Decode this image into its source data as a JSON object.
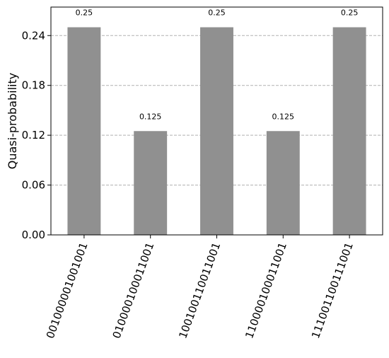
{
  "chart_data": {
    "type": "bar",
    "title": "",
    "xlabel": "",
    "ylabel": "Quasi-probability",
    "categories": [
      "001000001001001",
      "010000100011001",
      "100100110011001",
      "110000100011001",
      "111001100111001"
    ],
    "values": [
      0.25,
      0.125,
      0.25,
      0.125,
      0.25
    ],
    "value_labels": [
      "0.25",
      "0.125",
      "0.25",
      "0.125",
      "0.25"
    ],
    "ylim": [
      0,
      0.2743
    ],
    "yticks": [
      0.0,
      0.06,
      0.12,
      0.18,
      0.24
    ],
    "ytick_labels": [
      "0.00",
      "0.06",
      "0.12",
      "0.18",
      "0.24"
    ],
    "grid": "horizontal dashed",
    "legend": "none",
    "bar_color": "#909090",
    "grid_color": "#b0b0b0"
  }
}
